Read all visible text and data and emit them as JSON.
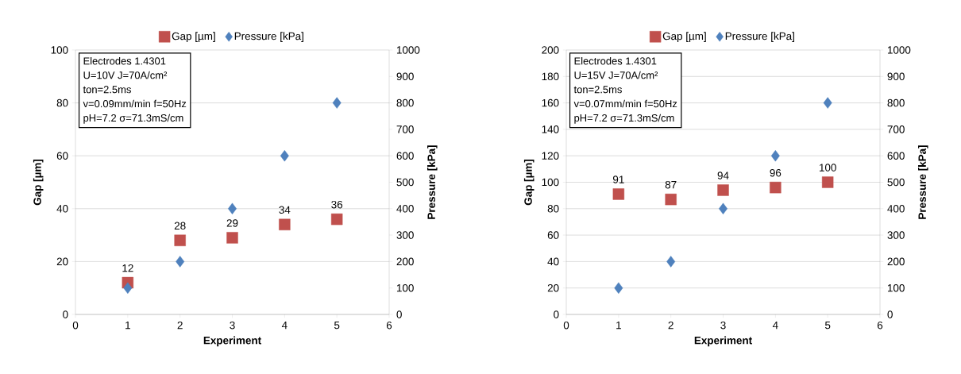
{
  "chart_data": [
    {
      "type": "scatter",
      "x": [
        1,
        2,
        3,
        4,
        5
      ],
      "xlim": [
        0,
        6
      ],
      "xticks": [
        0,
        1,
        2,
        3,
        4,
        5,
        6
      ],
      "ylim": [
        0,
        100
      ],
      "yticks": [
        0,
        20,
        40,
        60,
        80,
        100
      ],
      "y2lim": [
        0,
        1000
      ],
      "y2ticks": [
        0,
        100,
        200,
        300,
        400,
        500,
        600,
        700,
        800,
        900,
        1000
      ],
      "xlabel": "Experiment",
      "ylabel": "Gap [µm]",
      "y2label": "Pressure [kPa]",
      "grid": "y",
      "legend": "top",
      "annotations": [
        "Electrodes  1.4301",
        "U=10V  J=70A/cm²",
        "ton=2.5ms",
        "v=0.09mm/min  f=50Hz",
        "pH=7.2 σ=71.3mS/cm"
      ],
      "series": [
        {
          "name": "Gap [µm]",
          "color": "#c0504d",
          "marker": "square",
          "values": [
            12,
            28,
            29,
            34,
            36
          ],
          "value_labels": [
            "12",
            "28",
            "29",
            "34",
            "36"
          ]
        },
        {
          "name": "Pressure [kPa]",
          "color": "#4f81bd",
          "marker": "diamond",
          "axis": "y2",
          "values": [
            100,
            200,
            400,
            600,
            800
          ]
        }
      ]
    },
    {
      "type": "scatter",
      "x": [
        1,
        2,
        3,
        4,
        5
      ],
      "xlim": [
        0,
        6
      ],
      "xticks": [
        0,
        1,
        2,
        3,
        4,
        5,
        6
      ],
      "ylim": [
        0,
        200
      ],
      "yticks": [
        0,
        20,
        40,
        60,
        80,
        100,
        120,
        140,
        160,
        180,
        200
      ],
      "y2lim": [
        0,
        1000
      ],
      "y2ticks": [
        0,
        100,
        200,
        300,
        400,
        500,
        600,
        700,
        800,
        900,
        1000
      ],
      "xlabel": "Experiment",
      "ylabel": "Gap [µm]",
      "y2label": "Pressure [kPa]",
      "grid": "y",
      "legend": "top",
      "annotations": [
        "Electrodes  1.4301",
        "U=15V  J=70A/cm²",
        "ton=2.5ms",
        "v=0.07mm/min  f=50Hz",
        "pH=7.2   σ=71.3mS/cm"
      ],
      "series": [
        {
          "name": "Gap [µm]",
          "color": "#c0504d",
          "marker": "square",
          "values": [
            91,
            87,
            94,
            96,
            100
          ],
          "value_labels": [
            "91",
            "87",
            "94",
            "96",
            "100"
          ]
        },
        {
          "name": "Pressure [kPa]",
          "color": "#4f81bd",
          "marker": "diamond",
          "axis": "y2",
          "values": [
            100,
            200,
            400,
            600,
            800
          ]
        }
      ]
    }
  ]
}
